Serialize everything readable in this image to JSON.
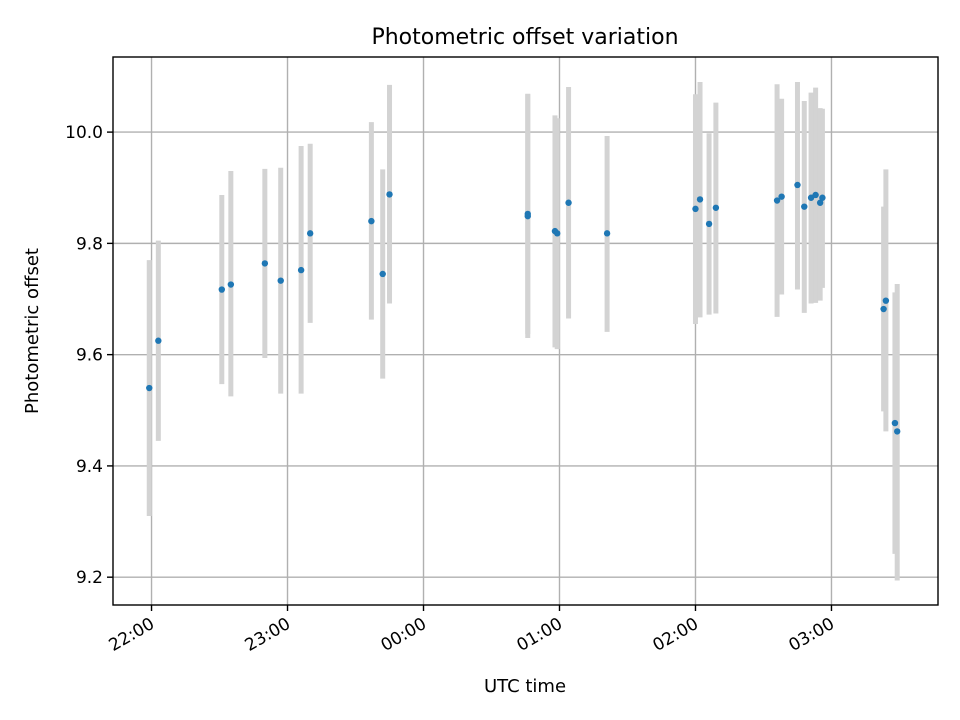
{
  "chart_data": {
    "type": "scatter",
    "title": "Photometric offset variation",
    "xlabel": "UTC time",
    "ylabel": "Photometric offset",
    "xlim": [
      "21:43",
      "03:47"
    ],
    "ylim": [
      9.15,
      10.135
    ],
    "grid": true,
    "x_ticks": [
      "22:00",
      "23:00",
      "00:00",
      "01:00",
      "02:00",
      "03:00"
    ],
    "y_ticks": [
      "9.2",
      "9.4",
      "9.6",
      "9.8",
      "10.0"
    ],
    "colors": {
      "points": "#1f77b4",
      "errorbars": "#d3d3d3",
      "grid": "#b0b0b0"
    },
    "series": [
      {
        "points": [
          {
            "x": "21:59",
            "y": 9.54,
            "lo": 9.31,
            "hi": 9.77
          },
          {
            "x": "22:03",
            "y": 9.625,
            "lo": 9.445,
            "hi": 9.805
          },
          {
            "x": "22:31",
            "y": 9.717,
            "lo": 9.547,
            "hi": 9.887
          },
          {
            "x": "22:35",
            "y": 9.726,
            "lo": 9.525,
            "hi": 9.93
          },
          {
            "x": "22:50",
            "y": 9.764,
            "lo": 9.594,
            "hi": 9.934
          },
          {
            "x": "22:57",
            "y": 9.733,
            "lo": 9.53,
            "hi": 9.936
          },
          {
            "x": "23:06",
            "y": 9.752,
            "lo": 9.53,
            "hi": 9.975
          },
          {
            "x": "23:10",
            "y": 9.818,
            "lo": 9.657,
            "hi": 9.979
          },
          {
            "x": "23:37",
            "y": 9.84,
            "lo": 9.663,
            "hi": 10.018
          },
          {
            "x": "23:42",
            "y": 9.745,
            "lo": 9.557,
            "hi": 9.933
          },
          {
            "x": "23:45",
            "y": 9.888,
            "lo": 9.692,
            "hi": 10.085
          },
          {
            "x": "00:46",
            "y": 9.853,
            "lo": 9.637,
            "hi": 10.069
          },
          {
            "x": "00:46",
            "y": 9.849,
            "lo": 9.63,
            "hi": 10.068
          },
          {
            "x": "00:58",
            "y": 9.822,
            "lo": 9.613,
            "hi": 10.03
          },
          {
            "x": "00:59",
            "y": 9.818,
            "lo": 9.61,
            "hi": 10.025
          },
          {
            "x": "01:04",
            "y": 9.873,
            "lo": 9.665,
            "hi": 10.081
          },
          {
            "x": "01:21",
            "y": 9.818,
            "lo": 9.641,
            "hi": 9.993
          },
          {
            "x": "02:00",
            "y": 9.862,
            "lo": 9.655,
            "hi": 10.068
          },
          {
            "x": "02:02",
            "y": 9.879,
            "lo": 9.667,
            "hi": 10.09
          },
          {
            "x": "02:06",
            "y": 9.835,
            "lo": 9.672,
            "hi": 9.998
          },
          {
            "x": "02:09",
            "y": 9.864,
            "lo": 9.674,
            "hi": 10.053
          },
          {
            "x": "02:36",
            "y": 9.877,
            "lo": 9.668,
            "hi": 10.086
          },
          {
            "x": "02:38",
            "y": 9.884,
            "lo": 9.708,
            "hi": 10.06
          },
          {
            "x": "02:45",
            "y": 9.905,
            "lo": 9.717,
            "hi": 10.09
          },
          {
            "x": "02:48",
            "y": 9.866,
            "lo": 9.675,
            "hi": 10.056
          },
          {
            "x": "02:51",
            "y": 9.882,
            "lo": 9.692,
            "hi": 10.071
          },
          {
            "x": "02:53",
            "y": 9.887,
            "lo": 9.693,
            "hi": 10.08
          },
          {
            "x": "02:55",
            "y": 9.873,
            "lo": 9.697,
            "hi": 10.043
          },
          {
            "x": "02:56",
            "y": 9.882,
            "lo": 9.72,
            "hi": 10.042
          },
          {
            "x": "03:23",
            "y": 9.682,
            "lo": 9.498,
            "hi": 9.866
          },
          {
            "x": "03:24",
            "y": 9.697,
            "lo": 9.462,
            "hi": 9.933
          },
          {
            "x": "03:28",
            "y": 9.477,
            "lo": 9.242,
            "hi": 9.712
          },
          {
            "x": "03:29",
            "y": 9.462,
            "lo": 9.194,
            "hi": 9.727
          }
        ]
      }
    ]
  }
}
